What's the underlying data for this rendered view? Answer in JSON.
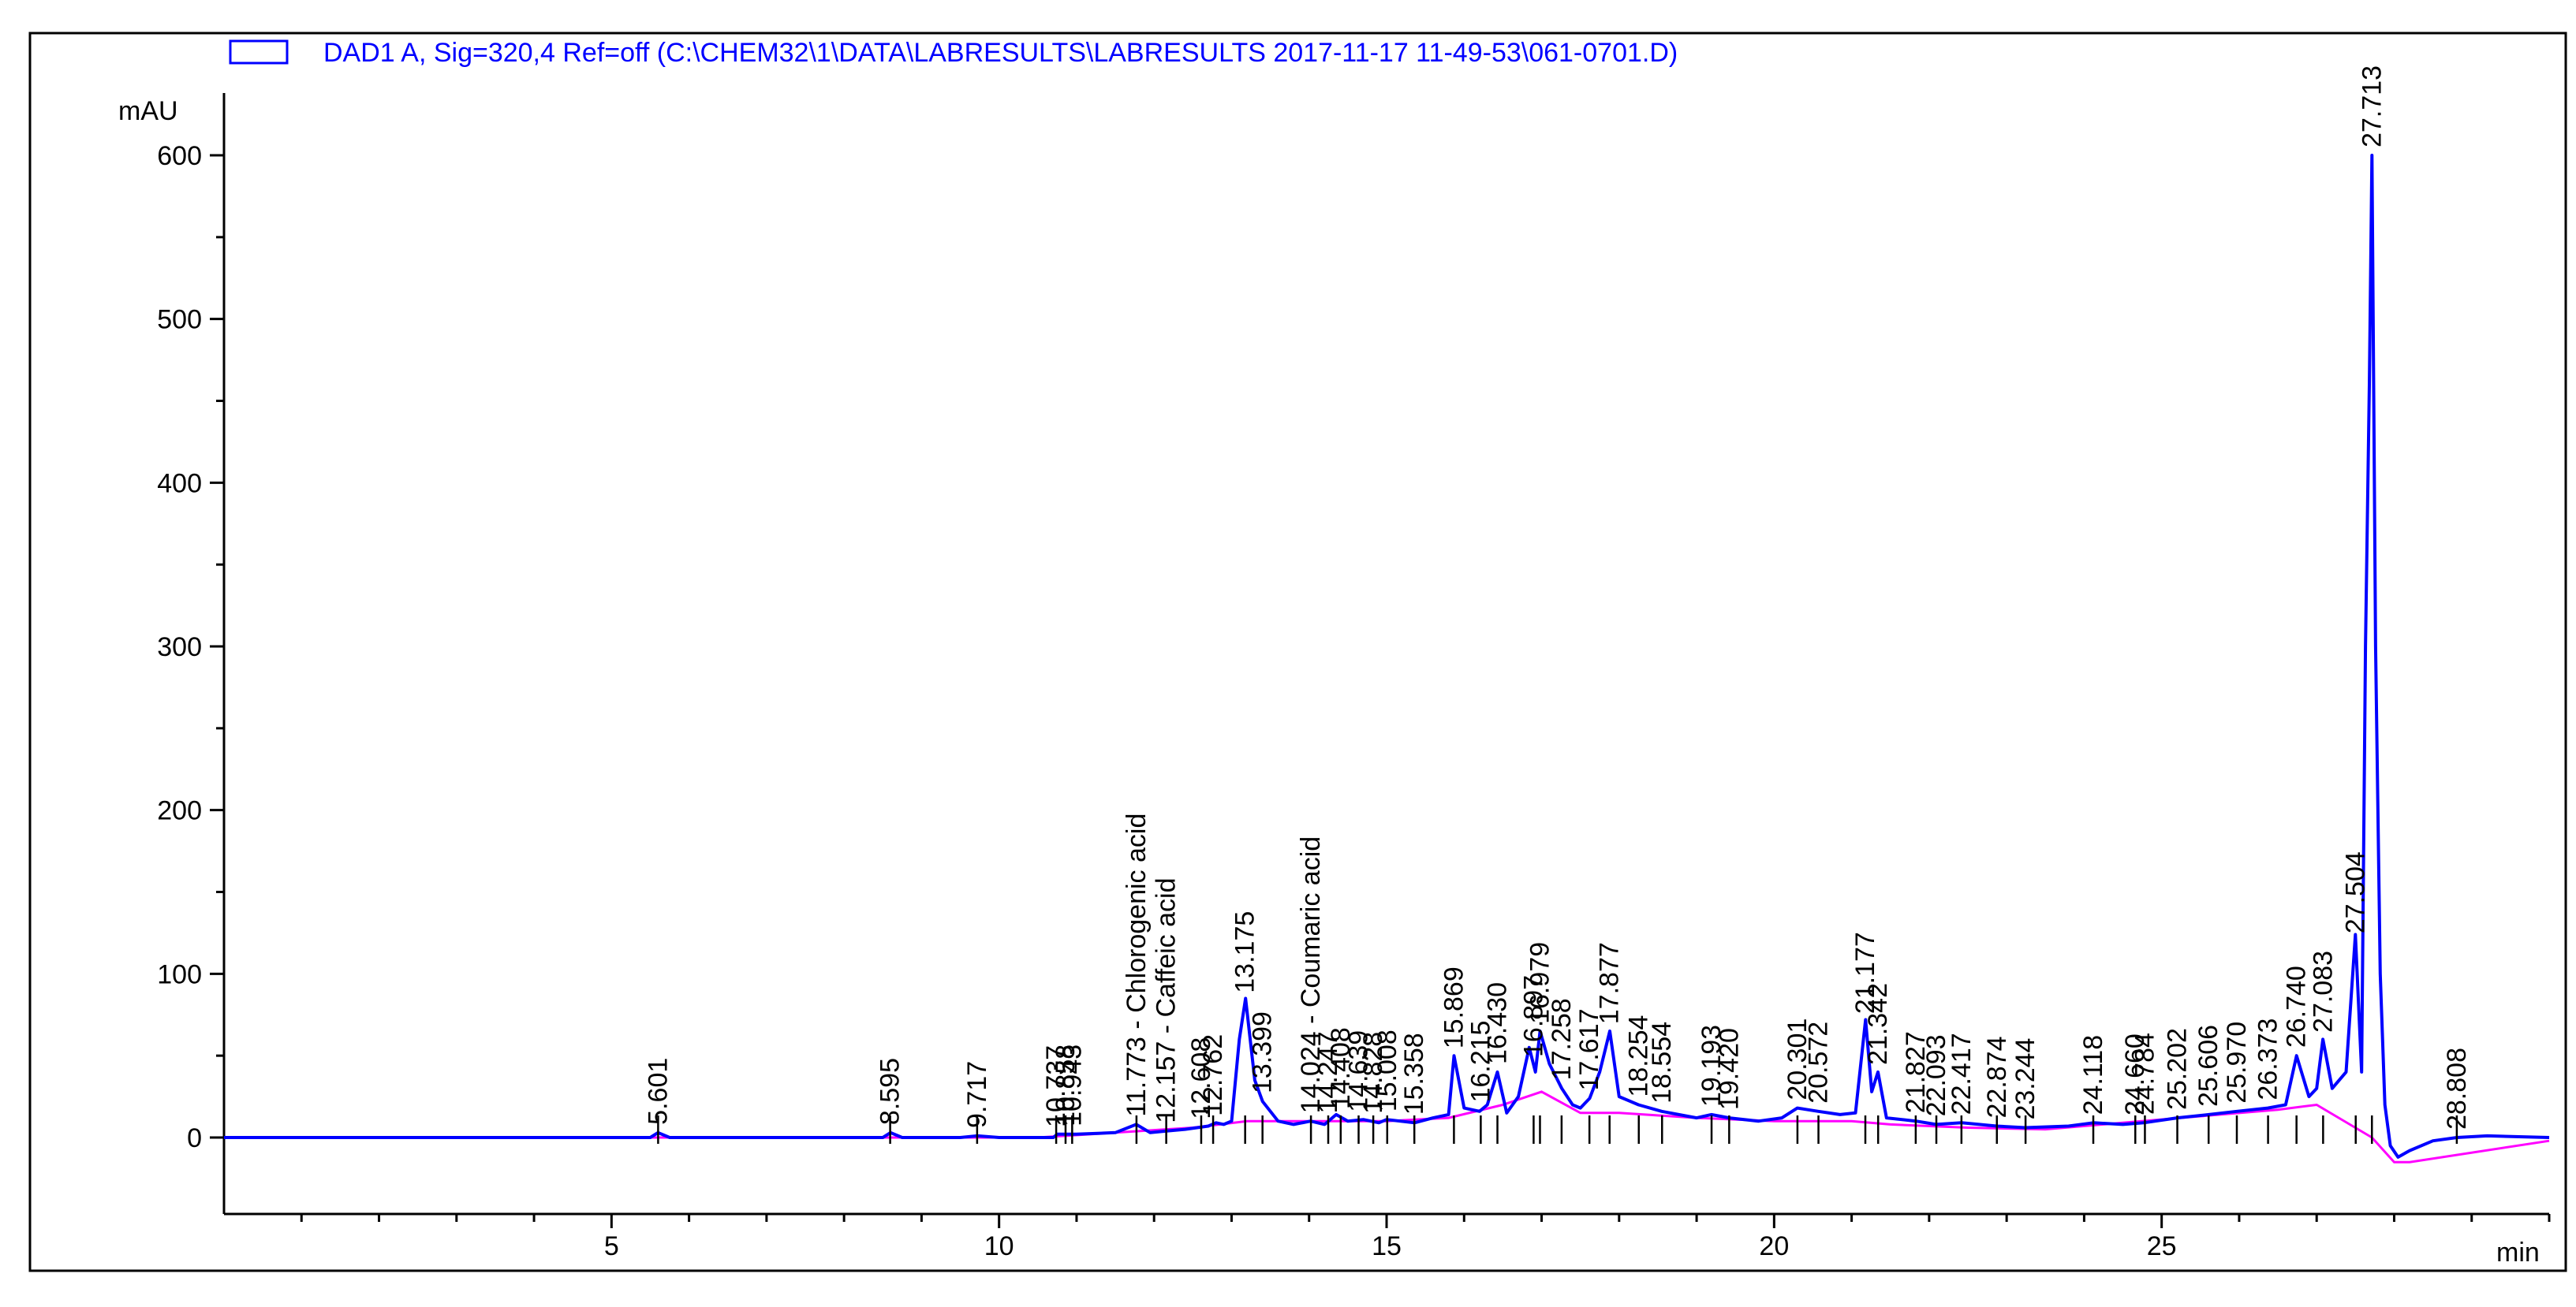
{
  "chart_data": {
    "type": "line",
    "legend_label": "DAD1 A, Sig=320,4 Ref=off (C:\\CHEM32\\1\\DATA\\LABRESULTS\\LABRESULTS 2017-11-17 11-49-53\\061-0701.D)",
    "ylabel": "mAU",
    "xlabel": "min",
    "xlim": [
      0,
      30
    ],
    "ylim": [
      -50,
      640
    ],
    "x_ticks": [
      5,
      10,
      15,
      20,
      25
    ],
    "y_ticks": [
      0,
      100,
      200,
      300,
      400,
      500,
      600
    ],
    "colors": {
      "signal": "#0000ff",
      "baseline": "#ff00ff",
      "legend": "#0000ff"
    },
    "series": [
      {
        "name": "signal",
        "x": [
          0,
          5.5,
          5.6,
          5.75,
          8.5,
          8.6,
          8.75,
          9.5,
          9.72,
          10.0,
          10.7,
          10.75,
          11.0,
          11.5,
          11.77,
          11.95,
          12.16,
          12.4,
          12.7,
          12.8,
          12.9,
          13.0,
          13.1,
          13.18,
          13.3,
          13.4,
          13.6,
          13.8,
          14.02,
          14.2,
          14.35,
          14.5,
          14.7,
          14.9,
          15.0,
          15.36,
          15.6,
          15.8,
          15.87,
          16.0,
          16.2,
          16.3,
          16.43,
          16.55,
          16.7,
          16.84,
          16.92,
          16.98,
          17.1,
          17.26,
          17.4,
          17.5,
          17.62,
          17.75,
          17.88,
          18.0,
          18.25,
          18.55,
          19.0,
          19.19,
          19.42,
          19.8,
          20.1,
          20.3,
          20.57,
          20.85,
          21.05,
          21.18,
          21.26,
          21.34,
          21.45,
          21.83,
          22.09,
          22.42,
          22.87,
          23.24,
          23.8,
          24.12,
          24.5,
          24.77,
          25.2,
          25.61,
          25.97,
          26.37,
          26.6,
          26.74,
          26.9,
          27.0,
          27.08,
          27.2,
          27.38,
          27.5,
          27.58,
          27.63,
          27.68,
          27.713,
          27.76,
          27.82,
          27.88,
          27.95,
          28.05,
          28.2,
          28.5,
          28.81,
          29.2,
          30
        ],
        "values": [
          0,
          0,
          3,
          0,
          0,
          3,
          0,
          0,
          1,
          0,
          0,
          2,
          2,
          3,
          8,
          3,
          4,
          5,
          7,
          9,
          8,
          10,
          60,
          85,
          35,
          22,
          10,
          8,
          10,
          8,
          14,
          10,
          11,
          9,
          11,
          9,
          12,
          14,
          50,
          18,
          16,
          20,
          40,
          15,
          25,
          55,
          40,
          65,
          45,
          30,
          20,
          18,
          24,
          40,
          65,
          25,
          20,
          16,
          12,
          14,
          12,
          10,
          12,
          18,
          16,
          14,
          15,
          72,
          28,
          40,
          12,
          10,
          8,
          9,
          7,
          6,
          7,
          9,
          8,
          9,
          12,
          14,
          16,
          18,
          20,
          50,
          25,
          30,
          60,
          30,
          40,
          124,
          40,
          300,
          460,
          600,
          300,
          100,
          20,
          -5,
          -12,
          -8,
          -2,
          0,
          1,
          0
        ]
      },
      {
        "name": "baseline",
        "x": [
          0,
          10.5,
          11.5,
          12.5,
          13.2,
          14.0,
          15.0,
          15.8,
          16.5,
          17.0,
          17.5,
          18.0,
          19.0,
          20.0,
          21.0,
          21.5,
          22.5,
          23.5,
          24.5,
          25.5,
          26.5,
          27.0,
          27.713,
          28.0,
          28.2,
          30
        ],
        "values": [
          0,
          0,
          3,
          6,
          10,
          10,
          10,
          12,
          20,
          28,
          15,
          15,
          12,
          10,
          10,
          8,
          6,
          5,
          9,
          13,
          17,
          20,
          0,
          -15,
          -15,
          -2
        ]
      }
    ],
    "peaks": [
      {
        "rt": 5.601,
        "label": "5.601"
      },
      {
        "rt": 8.595,
        "label": "8.595"
      },
      {
        "rt": 9.717,
        "label": "9.717"
      },
      {
        "rt": 10.737,
        "label": "10.737"
      },
      {
        "rt": 10.858,
        "label": "10.858"
      },
      {
        "rt": 10.943,
        "label": "10.943"
      },
      {
        "rt": 11.773,
        "label": "11.773 - Chlorogenic acid"
      },
      {
        "rt": 12.157,
        "label": "12.157 - Caffeic acid"
      },
      {
        "rt": 12.608,
        "label": "12.608"
      },
      {
        "rt": 12.762,
        "label": "12.762"
      },
      {
        "rt": 13.175,
        "label": "13.175"
      },
      {
        "rt": 13.399,
        "label": "13.399"
      },
      {
        "rt": 14.024,
        "label": "14.024 - Coumaric acid"
      },
      {
        "rt": 14.247,
        "label": "14.247"
      },
      {
        "rt": 14.408,
        "label": "14.408"
      },
      {
        "rt": 14.639,
        "label": "14.639"
      },
      {
        "rt": 14.828,
        "label": "14.828"
      },
      {
        "rt": 15.008,
        "label": "15.008"
      },
      {
        "rt": 15.358,
        "label": "15.358"
      },
      {
        "rt": 15.869,
        "label": "15.869"
      },
      {
        "rt": 16.215,
        "label": "16.215"
      },
      {
        "rt": 16.43,
        "label": "16.430"
      },
      {
        "rt": 16.897,
        "label": "16.897"
      },
      {
        "rt": 16.979,
        "label": "16.979"
      },
      {
        "rt": 17.258,
        "label": "17.258"
      },
      {
        "rt": 17.617,
        "label": "17.617"
      },
      {
        "rt": 17.877,
        "label": "17.877"
      },
      {
        "rt": 18.254,
        "label": "18.254"
      },
      {
        "rt": 18.554,
        "label": "18.554"
      },
      {
        "rt": 19.193,
        "label": "19.193"
      },
      {
        "rt": 19.42,
        "label": "19.420"
      },
      {
        "rt": 20.301,
        "label": "20.301"
      },
      {
        "rt": 20.572,
        "label": "20.572"
      },
      {
        "rt": 21.177,
        "label": "21.177"
      },
      {
        "rt": 21.342,
        "label": "21.342"
      },
      {
        "rt": 21.827,
        "label": "21.827"
      },
      {
        "rt": 22.093,
        "label": "22.093"
      },
      {
        "rt": 22.417,
        "label": "22.417"
      },
      {
        "rt": 22.874,
        "label": "22.874"
      },
      {
        "rt": 23.244,
        "label": "23.244"
      },
      {
        "rt": 24.118,
        "label": "24.118"
      },
      {
        "rt": 24.66,
        "label": "24.660"
      },
      {
        "rt": 24.784,
        "label": "24.784"
      },
      {
        "rt": 25.202,
        "label": "25.202"
      },
      {
        "rt": 25.606,
        "label": "25.606"
      },
      {
        "rt": 25.97,
        "label": "25.970"
      },
      {
        "rt": 26.373,
        "label": "26.373"
      },
      {
        "rt": 26.74,
        "label": "26.740"
      },
      {
        "rt": 27.083,
        "label": "27.083"
      },
      {
        "rt": 27.504,
        "label": "27.504"
      },
      {
        "rt": 27.713,
        "label": "27.713"
      },
      {
        "rt": 28.808,
        "label": "28.808"
      }
    ]
  }
}
